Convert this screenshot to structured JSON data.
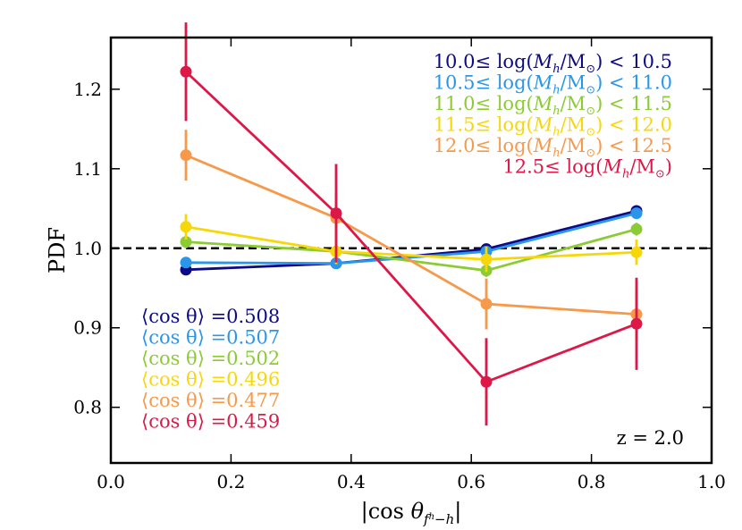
{
  "chart_data": {
    "type": "line",
    "title": "",
    "xlabel": "|cos θ_{f^h−h}|",
    "ylabel": "PDF",
    "xlim": [
      0.0,
      1.0
    ],
    "ylim": [
      0.73,
      1.265
    ],
    "xticks": [
      0.0,
      0.2,
      0.4,
      0.6,
      0.8,
      1.0
    ],
    "xtick_labels": [
      "0.0",
      "0.2",
      "0.4",
      "0.6",
      "0.8",
      "1.0"
    ],
    "yticks": [
      0.8,
      0.9,
      1.0,
      1.1,
      1.2
    ],
    "ytick_labels": [
      "0.8",
      "0.9",
      "1.0",
      "1.1",
      "1.2"
    ],
    "reference_line": {
      "y": 1.0,
      "style": "dashed",
      "color": "#000000"
    },
    "x": [
      0.125,
      0.375,
      0.625,
      0.875
    ],
    "series": [
      {
        "name": "10.0≤ log(M_h/M_⊙) < 10.5",
        "color": "#0d0a86",
        "values": [
          0.973,
          0.981,
          0.999,
          1.047
        ],
        "errors": [
          0.004,
          0.004,
          0.004,
          0.004
        ]
      },
      {
        "name": "10.5≤ log(M_h/M_⊙) < 11.0",
        "color": "#2a96ea",
        "values": [
          0.982,
          0.981,
          0.996,
          1.044
        ],
        "errors": [
          0.004,
          0.004,
          0.004,
          0.004
        ]
      },
      {
        "name": "11.0≤ log(M_h/M_⊙) < 11.5",
        "color": "#8ccb34",
        "values": [
          1.008,
          0.996,
          0.972,
          1.024
        ],
        "errors": [
          0.008,
          0.008,
          0.008,
          0.008
        ]
      },
      {
        "name": "11.5≤ log(M_h/M_⊙) < 12.0",
        "color": "#f6d80a",
        "values": [
          1.027,
          0.996,
          0.986,
          0.995
        ],
        "errors": [
          0.016,
          0.016,
          0.016,
          0.016
        ]
      },
      {
        "name": "12.0≤ log(M_h/M_⊙) < 12.5",
        "color": "#f7994a",
        "values": [
          1.117,
          1.038,
          0.93,
          0.917
        ],
        "errors": [
          0.032,
          0.032,
          0.032,
          0.032
        ]
      },
      {
        "name": "12.5≤ log(M_h/M_⊙)",
        "color": "#dd1848",
        "values": [
          1.222,
          1.044,
          0.832,
          0.905
        ],
        "errors": [
          0.062,
          0.062,
          0.055,
          0.058
        ]
      }
    ],
    "legend": {
      "placement": "top-right",
      "entries": [
        {
          "prefix": "10.0≤ log(",
          "mh": "M",
          "mh_sub": "h",
          "msun": "/M",
          "msun_sub": "⊙",
          "suffix": ") < 10.5"
        },
        {
          "prefix": "10.5≤ log(",
          "mh": "M",
          "mh_sub": "h",
          "msun": "/M",
          "msun_sub": "⊙",
          "suffix": ") < 11.0"
        },
        {
          "prefix": "11.0≤ log(",
          "mh": "M",
          "mh_sub": "h",
          "msun": "/M",
          "msun_sub": "⊙",
          "suffix": ") < 11.5"
        },
        {
          "prefix": "11.5≤ log(",
          "mh": "M",
          "mh_sub": "h",
          "msun": "/M",
          "msun_sub": "⊙",
          "suffix": ") < 12.0"
        },
        {
          "prefix": "12.0≤ log(",
          "mh": "M",
          "mh_sub": "h",
          "msun": "/M",
          "msun_sub": "⊙",
          "suffix": ") < 12.5"
        },
        {
          "prefix": "12.5≤ log(",
          "mh": "M",
          "mh_sub": "h",
          "msun": "/M",
          "msun_sub": "⊙",
          "suffix": ")"
        }
      ]
    },
    "mean_annotations": {
      "placement": "bottom-left",
      "entries": [
        {
          "lhs": "⟨cos θ⟩",
          "value": "=0.508"
        },
        {
          "lhs": "⟨cos θ⟩",
          "value": "=0.507"
        },
        {
          "lhs": "⟨cos θ⟩",
          "value": "=0.502"
        },
        {
          "lhs": "⟨cos θ⟩",
          "value": "=0.496"
        },
        {
          "lhs": "⟨cos θ⟩",
          "value": "=0.477"
        },
        {
          "lhs": "⟨cos θ⟩",
          "value": "=0.459"
        }
      ]
    },
    "redshift_label": "z = 2.0"
  }
}
